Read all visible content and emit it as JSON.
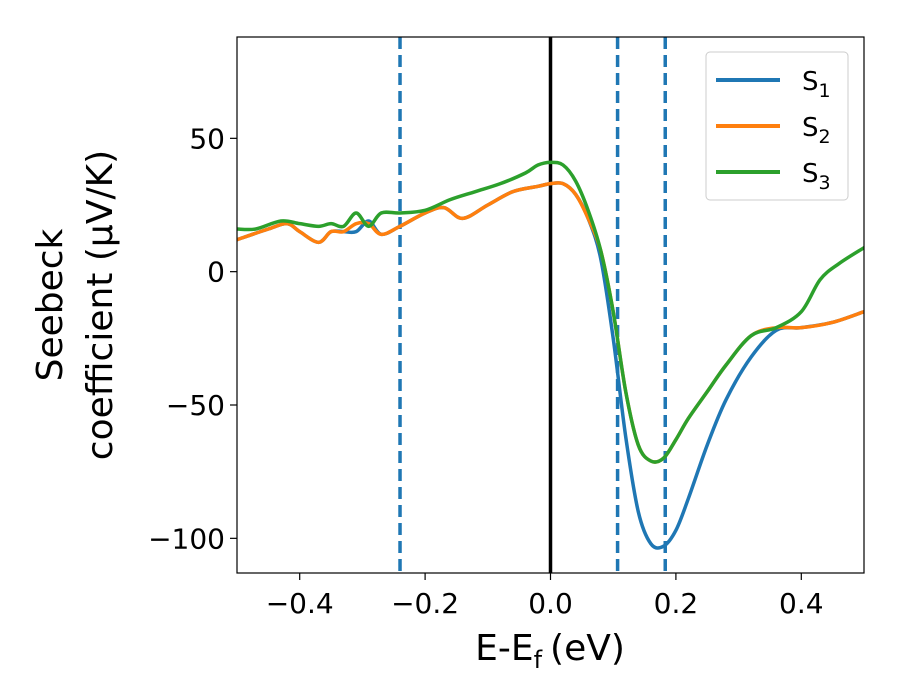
{
  "chart_data": {
    "type": "line",
    "xlabel": "E-E",
    "xlabel_sub": "f",
    "xlabel_unit": "(eV)",
    "ylabel_line1": "Seebeck",
    "ylabel_line2": "coefficient  (μV/K)",
    "xlim": [
      -0.5,
      0.5
    ],
    "ylim": [
      -113,
      88
    ],
    "xticks": [
      -0.4,
      -0.2,
      0.0,
      0.2,
      0.4
    ],
    "xtick_labels": [
      "−0.4",
      "−0.2",
      "0.0",
      "0.2",
      "0.4"
    ],
    "yticks": [
      -100,
      -50,
      0,
      50
    ],
    "ytick_labels": [
      "−100",
      "−50",
      "0",
      "50"
    ],
    "grid": false,
    "legend_placement": "top-right",
    "vlines": [
      {
        "x": 0.0,
        "style": "solid",
        "color": "#000000"
      },
      {
        "x": -0.24,
        "style": "dashed",
        "color": "#1f77b4"
      },
      {
        "x": 0.107,
        "style": "dashed",
        "color": "#1f77b4"
      },
      {
        "x": 0.183,
        "style": "dashed",
        "color": "#1f77b4"
      }
    ],
    "series": [
      {
        "name": "S",
        "sub": "1",
        "color": "#1f77b4",
        "points": [
          [
            -0.5,
            12
          ],
          [
            -0.45,
            16
          ],
          [
            -0.42,
            18
          ],
          [
            -0.4,
            15
          ],
          [
            -0.37,
            11
          ],
          [
            -0.35,
            15
          ],
          [
            -0.33,
            15
          ],
          [
            -0.31,
            15
          ],
          [
            -0.29,
            19
          ],
          [
            -0.27,
            14
          ],
          [
            -0.24,
            17
          ],
          [
            -0.2,
            22
          ],
          [
            -0.17,
            24
          ],
          [
            -0.14,
            20
          ],
          [
            -0.1,
            25
          ],
          [
            -0.06,
            30
          ],
          [
            -0.02,
            32
          ],
          [
            0.0,
            33
          ],
          [
            0.02,
            33
          ],
          [
            0.04,
            29
          ],
          [
            0.06,
            20
          ],
          [
            0.08,
            5
          ],
          [
            0.1,
            -25
          ],
          [
            0.12,
            -62
          ],
          [
            0.14,
            -90
          ],
          [
            0.16,
            -102
          ],
          [
            0.18,
            -103
          ],
          [
            0.2,
            -97
          ],
          [
            0.22,
            -85
          ],
          [
            0.25,
            -65
          ],
          [
            0.28,
            -48
          ],
          [
            0.32,
            -32
          ],
          [
            0.36,
            -22
          ],
          [
            0.4,
            -21
          ],
          [
            0.45,
            -19
          ],
          [
            0.5,
            -15
          ]
        ]
      },
      {
        "name": "S",
        "sub": "2",
        "color": "#ff7f0e",
        "points": [
          [
            -0.5,
            12
          ],
          [
            -0.45,
            16
          ],
          [
            -0.42,
            18
          ],
          [
            -0.4,
            15
          ],
          [
            -0.37,
            11
          ],
          [
            -0.35,
            15
          ],
          [
            -0.33,
            15
          ],
          [
            -0.31,
            18
          ],
          [
            -0.29,
            18
          ],
          [
            -0.27,
            14
          ],
          [
            -0.24,
            17
          ],
          [
            -0.2,
            22
          ],
          [
            -0.17,
            24
          ],
          [
            -0.14,
            20
          ],
          [
            -0.1,
            25
          ],
          [
            -0.06,
            30
          ],
          [
            -0.02,
            32
          ],
          [
            0.0,
            33
          ],
          [
            0.02,
            33
          ],
          [
            0.04,
            29
          ],
          [
            0.06,
            20
          ],
          [
            0.08,
            8
          ],
          [
            0.1,
            -15
          ],
          [
            0.12,
            -45
          ],
          [
            0.14,
            -65
          ],
          [
            0.16,
            -71
          ],
          [
            0.18,
            -70
          ],
          [
            0.2,
            -63
          ],
          [
            0.22,
            -55
          ],
          [
            0.25,
            -45
          ],
          [
            0.28,
            -35
          ],
          [
            0.32,
            -24
          ],
          [
            0.36,
            -21
          ],
          [
            0.4,
            -21
          ],
          [
            0.45,
            -19
          ],
          [
            0.5,
            -15
          ]
        ]
      },
      {
        "name": "S",
        "sub": "3",
        "color": "#2ca02c",
        "points": [
          [
            -0.5,
            16
          ],
          [
            -0.47,
            16
          ],
          [
            -0.43,
            19
          ],
          [
            -0.4,
            18
          ],
          [
            -0.37,
            17
          ],
          [
            -0.35,
            18
          ],
          [
            -0.33,
            17
          ],
          [
            -0.31,
            22
          ],
          [
            -0.29,
            17
          ],
          [
            -0.27,
            22
          ],
          [
            -0.24,
            22
          ],
          [
            -0.2,
            23
          ],
          [
            -0.16,
            27
          ],
          [
            -0.12,
            30
          ],
          [
            -0.08,
            33
          ],
          [
            -0.04,
            37
          ],
          [
            -0.02,
            40
          ],
          [
            0.0,
            41
          ],
          [
            0.02,
            40
          ],
          [
            0.04,
            34
          ],
          [
            0.06,
            23
          ],
          [
            0.08,
            8
          ],
          [
            0.1,
            -15
          ],
          [
            0.12,
            -45
          ],
          [
            0.14,
            -65
          ],
          [
            0.16,
            -71
          ],
          [
            0.18,
            -70
          ],
          [
            0.2,
            -63
          ],
          [
            0.22,
            -55
          ],
          [
            0.25,
            -45
          ],
          [
            0.28,
            -35
          ],
          [
            0.32,
            -24
          ],
          [
            0.36,
            -21
          ],
          [
            0.4,
            -15
          ],
          [
            0.43,
            -3
          ],
          [
            0.46,
            3
          ],
          [
            0.5,
            9
          ]
        ]
      }
    ]
  }
}
